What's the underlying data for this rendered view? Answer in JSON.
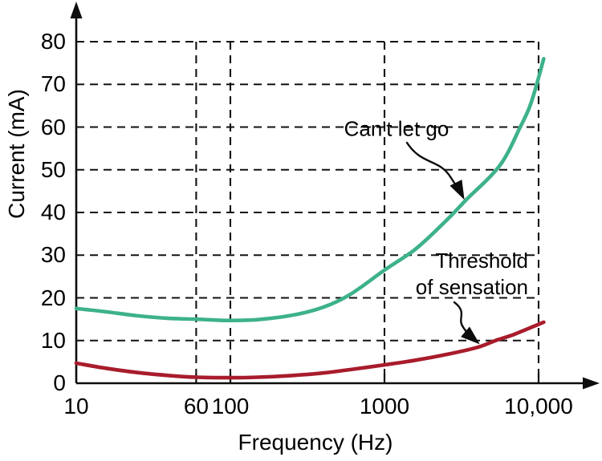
{
  "chart_data": {
    "type": "line",
    "title": "",
    "xlabel": "Frequency (Hz)",
    "ylabel": "Current (mA)",
    "x_scale": "log",
    "xlim": [
      10,
      13000
    ],
    "ylim": [
      0,
      88
    ],
    "grid": "dashed",
    "axis_color": "#0d0d0d",
    "background": "#ffffff",
    "x_ticks": [
      {
        "value": 10,
        "label": "10",
        "gridline": false
      },
      {
        "value": 60,
        "label": "60",
        "gridline": true
      },
      {
        "value": 100,
        "label": "100",
        "gridline": true
      },
      {
        "value": 1000,
        "label": "1000",
        "gridline": true
      },
      {
        "value": 10000,
        "label": "10,000",
        "gridline": true
      }
    ],
    "y_ticks": [
      {
        "value": 0,
        "label": "0",
        "gridline": false
      },
      {
        "value": 10,
        "label": "10",
        "gridline": true
      },
      {
        "value": 20,
        "label": "20",
        "gridline": true
      },
      {
        "value": 30,
        "label": "30",
        "gridline": true
      },
      {
        "value": 40,
        "label": "40",
        "gridline": true
      },
      {
        "value": 50,
        "label": "50",
        "gridline": true
      },
      {
        "value": 60,
        "label": "60",
        "gridline": true
      },
      {
        "value": 70,
        "label": "70",
        "gridline": true
      },
      {
        "value": 80,
        "label": "80",
        "gridline": true
      }
    ],
    "series": [
      {
        "name": "Can't let go",
        "color": "#3db28a",
        "points": [
          [
            10,
            17.5
          ],
          [
            15,
            16.8
          ],
          [
            25,
            15.8
          ],
          [
            40,
            15.2
          ],
          [
            60,
            15.0
          ],
          [
            80,
            14.8
          ],
          [
            100,
            14.7
          ],
          [
            150,
            14.9
          ],
          [
            250,
            15.9
          ],
          [
            400,
            17.8
          ],
          [
            600,
            20.8
          ],
          [
            1000,
            26.5
          ],
          [
            1600,
            31.5
          ],
          [
            2500,
            38.0
          ],
          [
            3400,
            43.0
          ],
          [
            5600,
            51.0
          ],
          [
            7600,
            60.0
          ],
          [
            9000,
            66.0
          ],
          [
            10800,
            76.0
          ]
        ]
      },
      {
        "name": "Threshold of sensation",
        "color": "#a81c2c",
        "points": [
          [
            10,
            4.7
          ],
          [
            15,
            3.6
          ],
          [
            25,
            2.5
          ],
          [
            40,
            1.8
          ],
          [
            60,
            1.4
          ],
          [
            100,
            1.3
          ],
          [
            150,
            1.4
          ],
          [
            250,
            1.8
          ],
          [
            400,
            2.4
          ],
          [
            600,
            3.2
          ],
          [
            1000,
            4.3
          ],
          [
            1600,
            5.4
          ],
          [
            2500,
            6.7
          ],
          [
            4000,
            8.4
          ],
          [
            5250,
            10.0
          ],
          [
            7000,
            11.5
          ],
          [
            10800,
            14.3
          ]
        ]
      }
    ],
    "annotations": [
      {
        "label": "Can't let go",
        "lines": [
          "Can't let go"
        ]
      },
      {
        "label": "Threshold of sensation",
        "lines": [
          "Threshold",
          "of sensation"
        ]
      }
    ]
  }
}
